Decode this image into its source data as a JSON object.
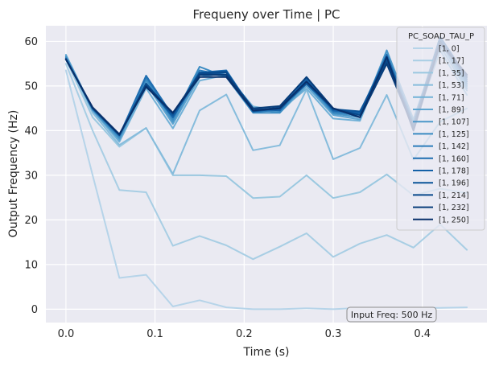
{
  "chart_data": {
    "type": "line",
    "title": "Frequeny over Time | PC",
    "xlabel": "Time (s)",
    "ylabel": "Output Frequency (Hz)",
    "xlim": [
      -0.0225,
      0.4725
    ],
    "ylim": [
      -3,
      63.5
    ],
    "xticks": [
      0.0,
      0.1,
      0.2,
      0.3,
      0.4
    ],
    "xtick_labels": [
      "0.0",
      "0.1",
      "0.2",
      "0.3",
      "0.4"
    ],
    "yticks": [
      0,
      10,
      20,
      30,
      40,
      50,
      60
    ],
    "ytick_labels": [
      "0",
      "10",
      "20",
      "30",
      "40",
      "50",
      "60"
    ],
    "grid": true,
    "background": "#eaeaf2",
    "legend": {
      "title": "PC_SOAD_TAU_P",
      "placement": "top-right"
    },
    "annotation": "Input Freq: 500 Hz",
    "x": [
      0.0,
      0.03,
      0.06,
      0.09,
      0.12,
      0.15,
      0.18,
      0.21,
      0.24,
      0.27,
      0.3,
      0.33,
      0.36,
      0.39,
      0.42,
      0.45
    ],
    "series": [
      {
        "name": "[1, 0]",
        "color": "#b6d4e9",
        "values": [
          53.5,
          30.0,
          7.0,
          7.7,
          0.6,
          2.0,
          0.4,
          0.0,
          0.0,
          0.2,
          0.0,
          0.3,
          0.3,
          0.3,
          0.3,
          0.4
        ]
      },
      {
        "name": "[1, 17]",
        "color": "#a8cee4",
        "values": [
          55.0,
          40.0,
          26.7,
          26.2,
          14.2,
          16.4,
          14.3,
          11.2,
          14.0,
          17.0,
          11.7,
          14.7,
          16.6,
          13.8,
          19.0,
          13.3
        ]
      },
      {
        "name": "[1, 35]",
        "color": "#9ac8e0",
        "values": [
          56.0,
          43.0,
          36.4,
          40.6,
          30.0,
          30.0,
          29.8,
          24.9,
          25.2,
          30.0,
          24.9,
          26.2,
          30.2,
          25.5,
          27.0,
          26.0
        ]
      },
      {
        "name": "[1, 53]",
        "color": "#86bcdc",
        "values": [
          56.5,
          44.0,
          36.8,
          40.6,
          30.3,
          44.5,
          48.1,
          35.6,
          36.7,
          49.2,
          33.6,
          36.1,
          48.0,
          33.5,
          42.0,
          45.0
        ]
      },
      {
        "name": "[1, 71]",
        "color": "#71b1d7",
        "values": [
          56.8,
          44.5,
          37.5,
          49.5,
          40.5,
          51.2,
          52.5,
          45.4,
          44.5,
          49.4,
          42.7,
          42.2,
          57.0,
          41.0,
          58.0,
          48.0
        ]
      },
      {
        "name": "[1, 89]",
        "color": "#5ea5d1",
        "values": [
          57.0,
          44.7,
          37.9,
          50.5,
          41.5,
          52.0,
          53.0,
          45.0,
          44.0,
          50.0,
          43.5,
          42.5,
          57.5,
          42.0,
          59.0,
          49.0
        ]
      },
      {
        "name": "[1, 107]",
        "color": "#4b97c9",
        "values": [
          56.6,
          44.6,
          38.2,
          51.0,
          42.0,
          52.5,
          53.2,
          44.6,
          44.3,
          50.5,
          43.8,
          43.0,
          58.0,
          42.5,
          60.0,
          49.5
        ]
      },
      {
        "name": "[1, 125]",
        "color": "#3a8bc2",
        "values": [
          56.4,
          44.8,
          38.5,
          51.5,
          42.5,
          54.3,
          52.0,
          44.0,
          44.0,
          51.0,
          44.0,
          43.5,
          56.5,
          42.0,
          60.5,
          50.0
        ]
      },
      {
        "name": "[1, 142]",
        "color": "#2c7cba",
        "values": [
          56.2,
          44.9,
          38.8,
          52.0,
          43.0,
          53.5,
          52.3,
          44.2,
          44.6,
          51.5,
          44.2,
          43.8,
          57.0,
          41.8,
          61.0,
          50.5
        ]
      },
      {
        "name": "[1, 160]",
        "color": "#1f6eb1",
        "values": [
          56.1,
          44.9,
          38.9,
          52.3,
          43.3,
          53.0,
          53.5,
          44.5,
          45.0,
          52.0,
          44.5,
          44.0,
          57.0,
          41.5,
          61.0,
          51.0
        ]
      },
      {
        "name": "[1, 178]",
        "color": "#1461a7",
        "values": [
          56.0,
          45.0,
          39.0,
          50.5,
          43.0,
          52.5,
          53.0,
          45.0,
          44.5,
          51.5,
          44.5,
          44.0,
          56.5,
          41.0,
          60.5,
          51.5
        ]
      },
      {
        "name": "[1, 196]",
        "color": "#0b5499",
        "values": [
          56.0,
          45.0,
          39.0,
          50.0,
          43.5,
          53.0,
          53.3,
          44.3,
          45.0,
          50.5,
          44.8,
          44.3,
          56.0,
          41.2,
          61.0,
          52.0
        ]
      },
      {
        "name": "[1, 214]",
        "color": "#08488a",
        "values": [
          56.0,
          45.1,
          39.0,
          50.5,
          43.8,
          52.8,
          53.0,
          44.5,
          45.2,
          51.0,
          45.0,
          43.5,
          55.5,
          41.0,
          60.0,
          52.0
        ]
      },
      {
        "name": "[1, 232]",
        "color": "#083d7a",
        "values": [
          56.0,
          45.1,
          39.1,
          50.0,
          44.0,
          52.5,
          52.5,
          45.0,
          45.5,
          52.0,
          45.0,
          43.0,
          55.0,
          40.5,
          60.0,
          52.5
        ]
      },
      {
        "name": "[1, 250]",
        "color": "#08306b",
        "values": [
          56.0,
          45.2,
          39.2,
          49.8,
          44.0,
          52.0,
          52.0,
          44.5,
          45.0,
          51.0,
          45.0,
          43.0,
          56.5,
          40.0,
          59.5,
          52.5
        ]
      }
    ]
  }
}
